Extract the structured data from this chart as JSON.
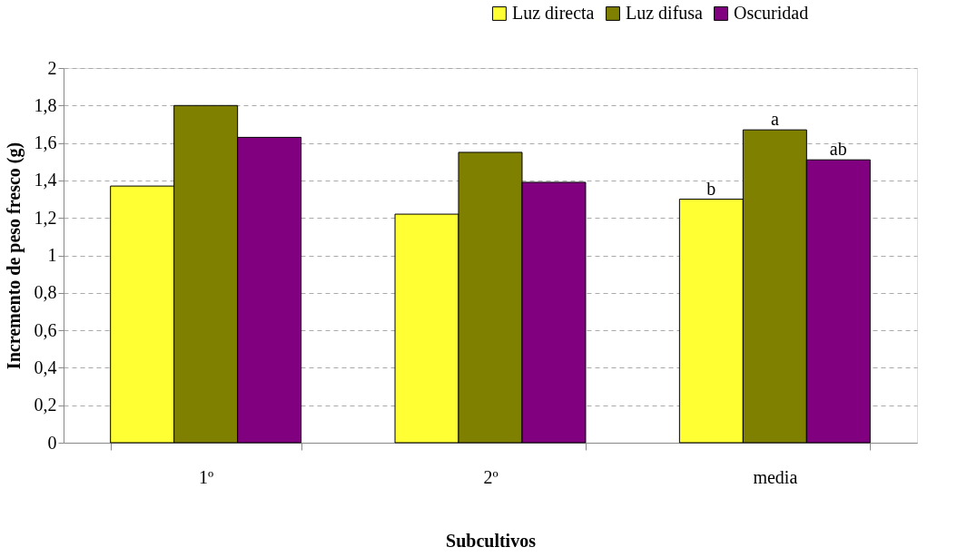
{
  "chart_data": {
    "type": "bar",
    "xlabel": "Subcultivos",
    "ylabel": "Incremento de peso fresco (g)",
    "categories": [
      "1º",
      "2º",
      "media"
    ],
    "series": [
      {
        "name": "Luz directa",
        "color": "#ffff33",
        "values": [
          1.37,
          1.22,
          1.3
        ]
      },
      {
        "name": "Luz difusa",
        "color": "#808000",
        "values": [
          1.8,
          1.55,
          1.67
        ]
      },
      {
        "name": "Oscuridad",
        "color": "#800080",
        "values": [
          1.63,
          1.39,
          1.51
        ]
      }
    ],
    "ylim": [
      0,
      2
    ],
    "yticks": [
      0,
      {
        "value": 0.2,
        "label": "0,2"
      },
      {
        "value": 0.4,
        "label": "0,4"
      },
      {
        "value": 0.6,
        "label": "0,6"
      },
      {
        "value": 0.8,
        "label": "0,8"
      },
      1,
      {
        "value": 1.2,
        "label": "1,2"
      },
      {
        "value": 1.4,
        "label": "1,4"
      },
      {
        "value": 1.6,
        "label": "1,6"
      },
      {
        "value": 1.8,
        "label": "1,8"
      },
      2
    ],
    "annotations": [
      "b",
      {
        "text": "a",
        "x": "media",
        "y": 1.67
      },
      "ab"
    ],
    "grid": "y",
    "legend": "top right"
  }
}
